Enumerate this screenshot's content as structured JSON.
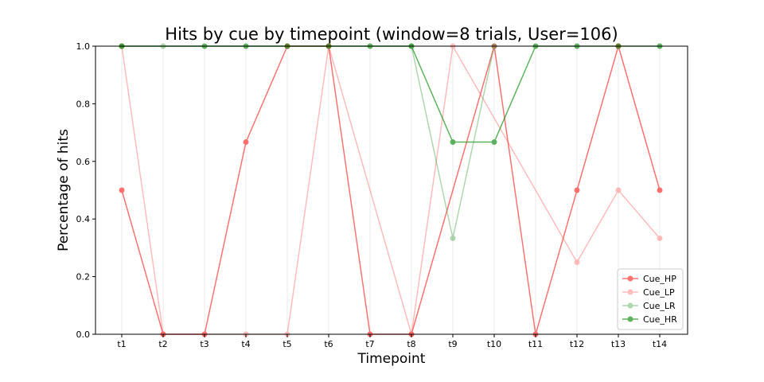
{
  "chart_data": {
    "type": "line",
    "title": "Hits by cue by timepoint (window=8 trials, User=106)",
    "xlabel": "Timepoint",
    "ylabel": "Percentage of hits",
    "categories": [
      "t1",
      "t2",
      "t3",
      "t4",
      "t5",
      "t6",
      "t7",
      "t8",
      "t9",
      "t10",
      "t11",
      "t12",
      "t13",
      "t14"
    ],
    "ylim": [
      0,
      1.0
    ],
    "yticks": [
      "0.0",
      "0.2",
      "0.4",
      "0.6",
      "0.8",
      "1.0"
    ],
    "grid": "vertical",
    "legend_position": "lower-right",
    "series": [
      {
        "name": "Cue_HP",
        "color": "#ff0000",
        "opacity": 0.55,
        "values": [
          0.5,
          0.0,
          0.0,
          0.667,
          1.0,
          1.0,
          0.0,
          0.0,
          null,
          1.0,
          0.0,
          0.5,
          1.0,
          0.5
        ]
      },
      {
        "name": "Cue_LP",
        "color": "#ff5a5a",
        "opacity": 0.4,
        "values": [
          1.0,
          0.0,
          null,
          0.0,
          0.0,
          1.0,
          null,
          0.0,
          1.0,
          null,
          null,
          0.25,
          0.5,
          0.333
        ]
      },
      {
        "name": "Cue_LR",
        "color": "#3a9a3a",
        "opacity": 0.4,
        "values": [
          1.0,
          1.0,
          null,
          null,
          null,
          null,
          null,
          1.0,
          0.333,
          1.0,
          null,
          null,
          null,
          null
        ]
      },
      {
        "name": "Cue_HR",
        "color": "#0a8a0a",
        "opacity": 0.65,
        "values": [
          1.0,
          null,
          1.0,
          1.0,
          1.0,
          1.0,
          1.0,
          1.0,
          0.667,
          0.667,
          1.0,
          1.0,
          1.0,
          1.0
        ]
      }
    ]
  }
}
